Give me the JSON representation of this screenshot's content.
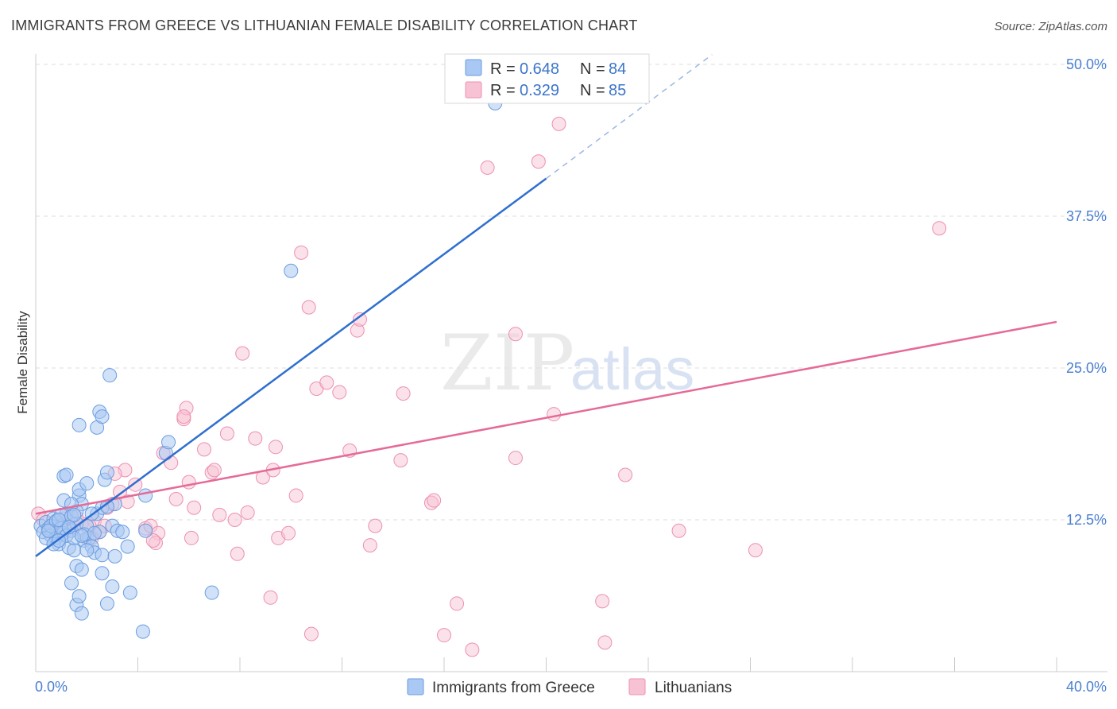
{
  "title": "IMMIGRANTS FROM GREECE VS LITHUANIAN FEMALE DISABILITY CORRELATION CHART",
  "source": "Source: ZipAtlas.com",
  "watermark": {
    "zip": "ZIP",
    "atlas": "atlas"
  },
  "legend_top": [
    {
      "r_label": "R = ",
      "r_value": "0.648",
      "n_label": "N = ",
      "n_value": "84"
    },
    {
      "r_label": "R = ",
      "r_value": "0.329",
      "n_label": "N = ",
      "n_value": "85"
    }
  ],
  "legend_bottom": [
    "Immigrants from Greece",
    "Lithuanians"
  ],
  "colors": {
    "blue_fill": "#a9c8f3",
    "blue_stroke": "#6b9de0",
    "blue_line": "#2f6fcf",
    "pink_fill": "#f7c3d4",
    "pink_stroke": "#ec91b1",
    "pink_line": "#e56a97",
    "grid": "#dddddd",
    "tick_label": "#4a7fd0"
  },
  "chart_data": {
    "type": "scatter",
    "title": "IMMIGRANTS FROM GREECE VS LITHUANIAN FEMALE DISABILITY CORRELATION CHART",
    "xlabel": "",
    "ylabel": "Female Disability",
    "xlim": [
      0,
      40
    ],
    "ylim": [
      0,
      50
    ],
    "x_tick_labels": [
      "0.0%",
      "40.0%"
    ],
    "y_ticks": [
      12.5,
      25.0,
      37.5,
      50.0
    ],
    "y_tick_labels": [
      "12.5%",
      "25.0%",
      "37.5%",
      "50.0%"
    ],
    "grid": true,
    "legend_position": "top-center",
    "series": [
      {
        "name": "Immigrants from Greece",
        "r": 0.648,
        "n": 84,
        "trend": {
          "x": [
            0,
            20
          ],
          "y": [
            9.5,
            40.6
          ],
          "dashed_to": [
            26.5,
            50.8
          ]
        },
        "points": [
          [
            0.2,
            12.0
          ],
          [
            0.3,
            11.5
          ],
          [
            0.4,
            12.3
          ],
          [
            0.5,
            11.8
          ],
          [
            0.6,
            11.2
          ],
          [
            0.7,
            12.6
          ],
          [
            0.8,
            11.0
          ],
          [
            0.9,
            10.5
          ],
          [
            1.0,
            12.0
          ],
          [
            1.1,
            11.4
          ],
          [
            1.2,
            13.0
          ],
          [
            1.3,
            10.2
          ],
          [
            1.4,
            11.6
          ],
          [
            1.5,
            10.0
          ],
          [
            1.6,
            12.2
          ],
          [
            1.7,
            14.5
          ],
          [
            1.8,
            13.8
          ],
          [
            1.9,
            10.8
          ],
          [
            2.0,
            12.0
          ],
          [
            2.1,
            11.0
          ],
          [
            2.2,
            10.3
          ],
          [
            2.3,
            9.8
          ],
          [
            2.4,
            13.0
          ],
          [
            2.5,
            11.5
          ],
          [
            2.6,
            9.6
          ],
          [
            0.4,
            11.0
          ],
          [
            0.6,
            12.0
          ],
          [
            0.8,
            12.4
          ],
          [
            1.0,
            11.8
          ],
          [
            1.2,
            11.2
          ],
          [
            1.0,
            12.9
          ],
          [
            1.1,
            14.1
          ],
          [
            1.4,
            12.8
          ],
          [
            1.6,
            13.2
          ],
          [
            1.9,
            11.3
          ],
          [
            1.1,
            16.1
          ],
          [
            1.2,
            16.2
          ],
          [
            1.7,
            15.0
          ],
          [
            1.4,
            13.8
          ],
          [
            0.9,
            12.5
          ],
          [
            2.0,
            15.5
          ],
          [
            2.3,
            11.4
          ],
          [
            2.6,
            13.5
          ],
          [
            2.7,
            15.8
          ],
          [
            2.8,
            16.4
          ],
          [
            3.0,
            12.0
          ],
          [
            3.2,
            11.6
          ],
          [
            3.4,
            11.5
          ],
          [
            3.6,
            10.3
          ],
          [
            3.1,
            9.5
          ],
          [
            1.7,
            20.3
          ],
          [
            2.4,
            20.1
          ],
          [
            2.5,
            21.4
          ],
          [
            2.6,
            21.0
          ],
          [
            2.9,
            24.4
          ],
          [
            1.4,
            7.3
          ],
          [
            1.6,
            5.5
          ],
          [
            1.6,
            8.7
          ],
          [
            1.7,
            6.2
          ],
          [
            1.8,
            8.4
          ],
          [
            1.8,
            4.8
          ],
          [
            2.6,
            8.1
          ],
          [
            2.8,
            5.6
          ],
          [
            3.0,
            7.0
          ],
          [
            3.7,
            6.5
          ],
          [
            4.3,
            11.6
          ],
          [
            4.3,
            14.5
          ],
          [
            5.1,
            18.0
          ],
          [
            5.2,
            18.9
          ],
          [
            6.9,
            6.5
          ],
          [
            4.2,
            3.3
          ],
          [
            10.0,
            33.0
          ],
          [
            18.0,
            46.8
          ],
          [
            0.7,
            10.5
          ],
          [
            1.5,
            11.0
          ],
          [
            2.0,
            10.0
          ],
          [
            2.2,
            13.0
          ],
          [
            3.1,
            13.8
          ],
          [
            0.5,
            11.6
          ],
          [
            1.3,
            11.9
          ],
          [
            1.5,
            12.9
          ],
          [
            0.9,
            10.8
          ],
          [
            1.8,
            11.2
          ],
          [
            2.8,
            13.6
          ]
        ]
      },
      {
        "name": "Lithuanians",
        "r": 0.329,
        "n": 85,
        "trend": {
          "x": [
            0,
            40
          ],
          "y": [
            13.0,
            28.8
          ]
        },
        "points": [
          [
            0.1,
            13.0
          ],
          [
            0.3,
            12.5
          ],
          [
            0.5,
            11.8
          ],
          [
            0.8,
            12.0
          ],
          [
            1.0,
            11.5
          ],
          [
            1.3,
            12.3
          ],
          [
            1.5,
            11.9
          ],
          [
            1.8,
            12.2
          ],
          [
            2.0,
            11.0
          ],
          [
            2.3,
            12.4
          ],
          [
            2.5,
            11.5
          ],
          [
            2.8,
            13.5
          ],
          [
            3.0,
            13.8
          ],
          [
            3.3,
            14.8
          ],
          [
            3.5,
            16.6
          ],
          [
            3.1,
            16.3
          ],
          [
            3.9,
            15.4
          ],
          [
            4.3,
            11.8
          ],
          [
            4.5,
            12.0
          ],
          [
            4.8,
            11.4
          ],
          [
            4.7,
            10.6
          ],
          [
            5.0,
            18.0
          ],
          [
            5.3,
            17.2
          ],
          [
            5.5,
            14.2
          ],
          [
            5.8,
            20.8
          ],
          [
            5.9,
            21.7
          ],
          [
            5.8,
            21.0
          ],
          [
            6.0,
            15.6
          ],
          [
            6.1,
            11.0
          ],
          [
            6.2,
            13.5
          ],
          [
            6.6,
            18.3
          ],
          [
            6.9,
            16.4
          ],
          [
            7.0,
            16.6
          ],
          [
            7.2,
            12.9
          ],
          [
            7.5,
            19.6
          ],
          [
            7.8,
            12.5
          ],
          [
            7.9,
            9.7
          ],
          [
            8.1,
            26.2
          ],
          [
            8.3,
            13.1
          ],
          [
            8.6,
            19.2
          ],
          [
            8.9,
            16.0
          ],
          [
            9.2,
            6.1
          ],
          [
            9.3,
            16.6
          ],
          [
            9.5,
            11.0
          ],
          [
            9.4,
            18.5
          ],
          [
            9.9,
            11.4
          ],
          [
            10.2,
            14.5
          ],
          [
            10.4,
            34.5
          ],
          [
            10.7,
            30.0
          ],
          [
            11.0,
            23.3
          ],
          [
            10.8,
            3.1
          ],
          [
            11.4,
            23.8
          ],
          [
            11.9,
            23.0
          ],
          [
            12.3,
            18.2
          ],
          [
            12.6,
            28.1
          ],
          [
            12.7,
            29.0
          ],
          [
            13.1,
            10.4
          ],
          [
            13.3,
            12.0
          ],
          [
            14.4,
            22.9
          ],
          [
            14.3,
            17.4
          ],
          [
            15.5,
            13.9
          ],
          [
            15.6,
            14.1
          ],
          [
            16.0,
            3.0
          ],
          [
            16.5,
            5.6
          ],
          [
            17.1,
            1.8
          ],
          [
            17.7,
            41.5
          ],
          [
            18.8,
            27.8
          ],
          [
            18.8,
            17.6
          ],
          [
            19.7,
            42.0
          ],
          [
            20.3,
            21.2
          ],
          [
            20.5,
            45.1
          ],
          [
            22.2,
            5.8
          ],
          [
            22.3,
            2.4
          ],
          [
            23.1,
            16.2
          ],
          [
            25.2,
            11.6
          ],
          [
            28.2,
            10.0
          ],
          [
            35.4,
            36.5
          ],
          [
            2.2,
            11.0
          ],
          [
            1.6,
            12.7
          ],
          [
            2.7,
            12.0
          ],
          [
            3.6,
            14.0
          ],
          [
            4.6,
            10.8
          ],
          [
            0.7,
            12.2
          ],
          [
            1.1,
            12.6
          ],
          [
            2.1,
            12.0
          ]
        ]
      }
    ]
  }
}
